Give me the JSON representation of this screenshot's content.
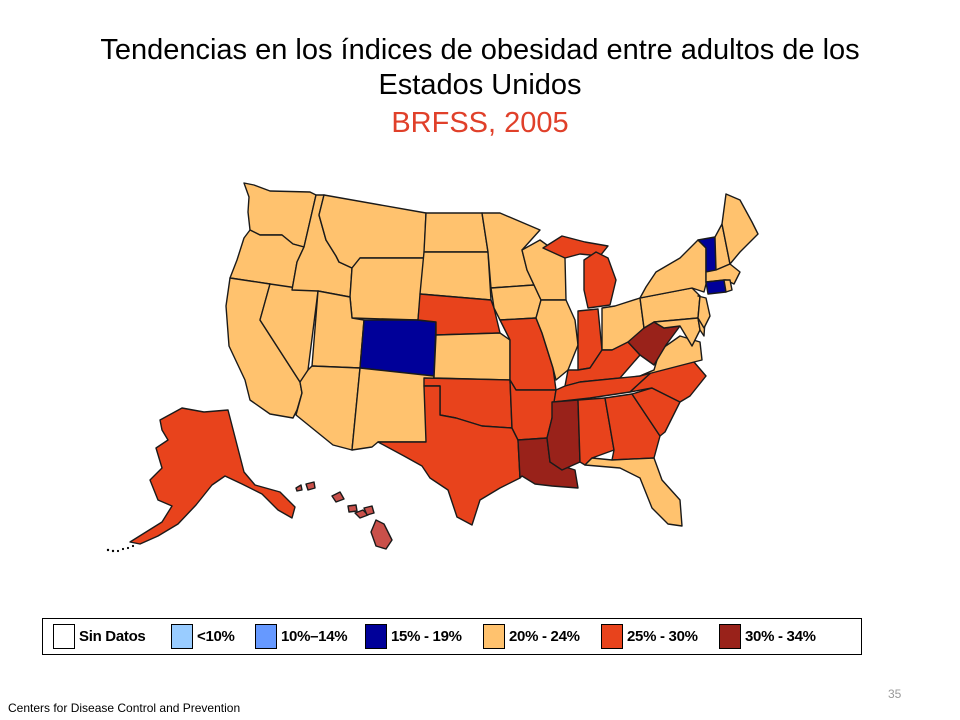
{
  "title": {
    "line1": "Tendencias en los índices de obesidad entre adultos de los",
    "line2": "Estados Unidos",
    "subtitle": "BRFSS, 2005"
  },
  "legend": [
    {
      "label": "Sin Datos",
      "color": "#ffffff"
    },
    {
      "label": "<10%",
      "color": "#99ccff"
    },
    {
      "label": "10%–14%",
      "color": "#6699ff"
    },
    {
      "label": "15% - 19%",
      "color": "#000099"
    },
    {
      "label": "20% - 24%",
      "color": "#ffc26e"
    },
    {
      "label": "25% - 30%",
      "color": "#e8431c"
    },
    {
      "label": "30% - 34%",
      "color": "#99221a"
    }
  ],
  "map_data": {
    "categories": {
      "15% - 19%": [
        "CO",
        "VT",
        "CT"
      ],
      "20% - 24%": [
        "WA",
        "OR",
        "CA",
        "NV",
        "ID",
        "MT",
        "WY",
        "UT",
        "AZ",
        "NM",
        "ND",
        "SD",
        "KS",
        "MN",
        "IA",
        "WI",
        "IL",
        "OH",
        "PA",
        "NY",
        "ME",
        "NH",
        "MA",
        "RI",
        "NJ",
        "DE",
        "MD",
        "VA",
        "FL"
      ],
      "25% - 30%": [
        "AK",
        "HI",
        "NE",
        "TX",
        "OK",
        "MO",
        "AR",
        "MI",
        "IN",
        "KY",
        "TN",
        "AL",
        "GA",
        "SC",
        "NC"
      ],
      "30% - 34%": [
        "WV",
        "MS",
        "LA"
      ]
    }
  },
  "footer": {
    "source": "Centers  for Disease Control and Prevention",
    "page": "35"
  }
}
